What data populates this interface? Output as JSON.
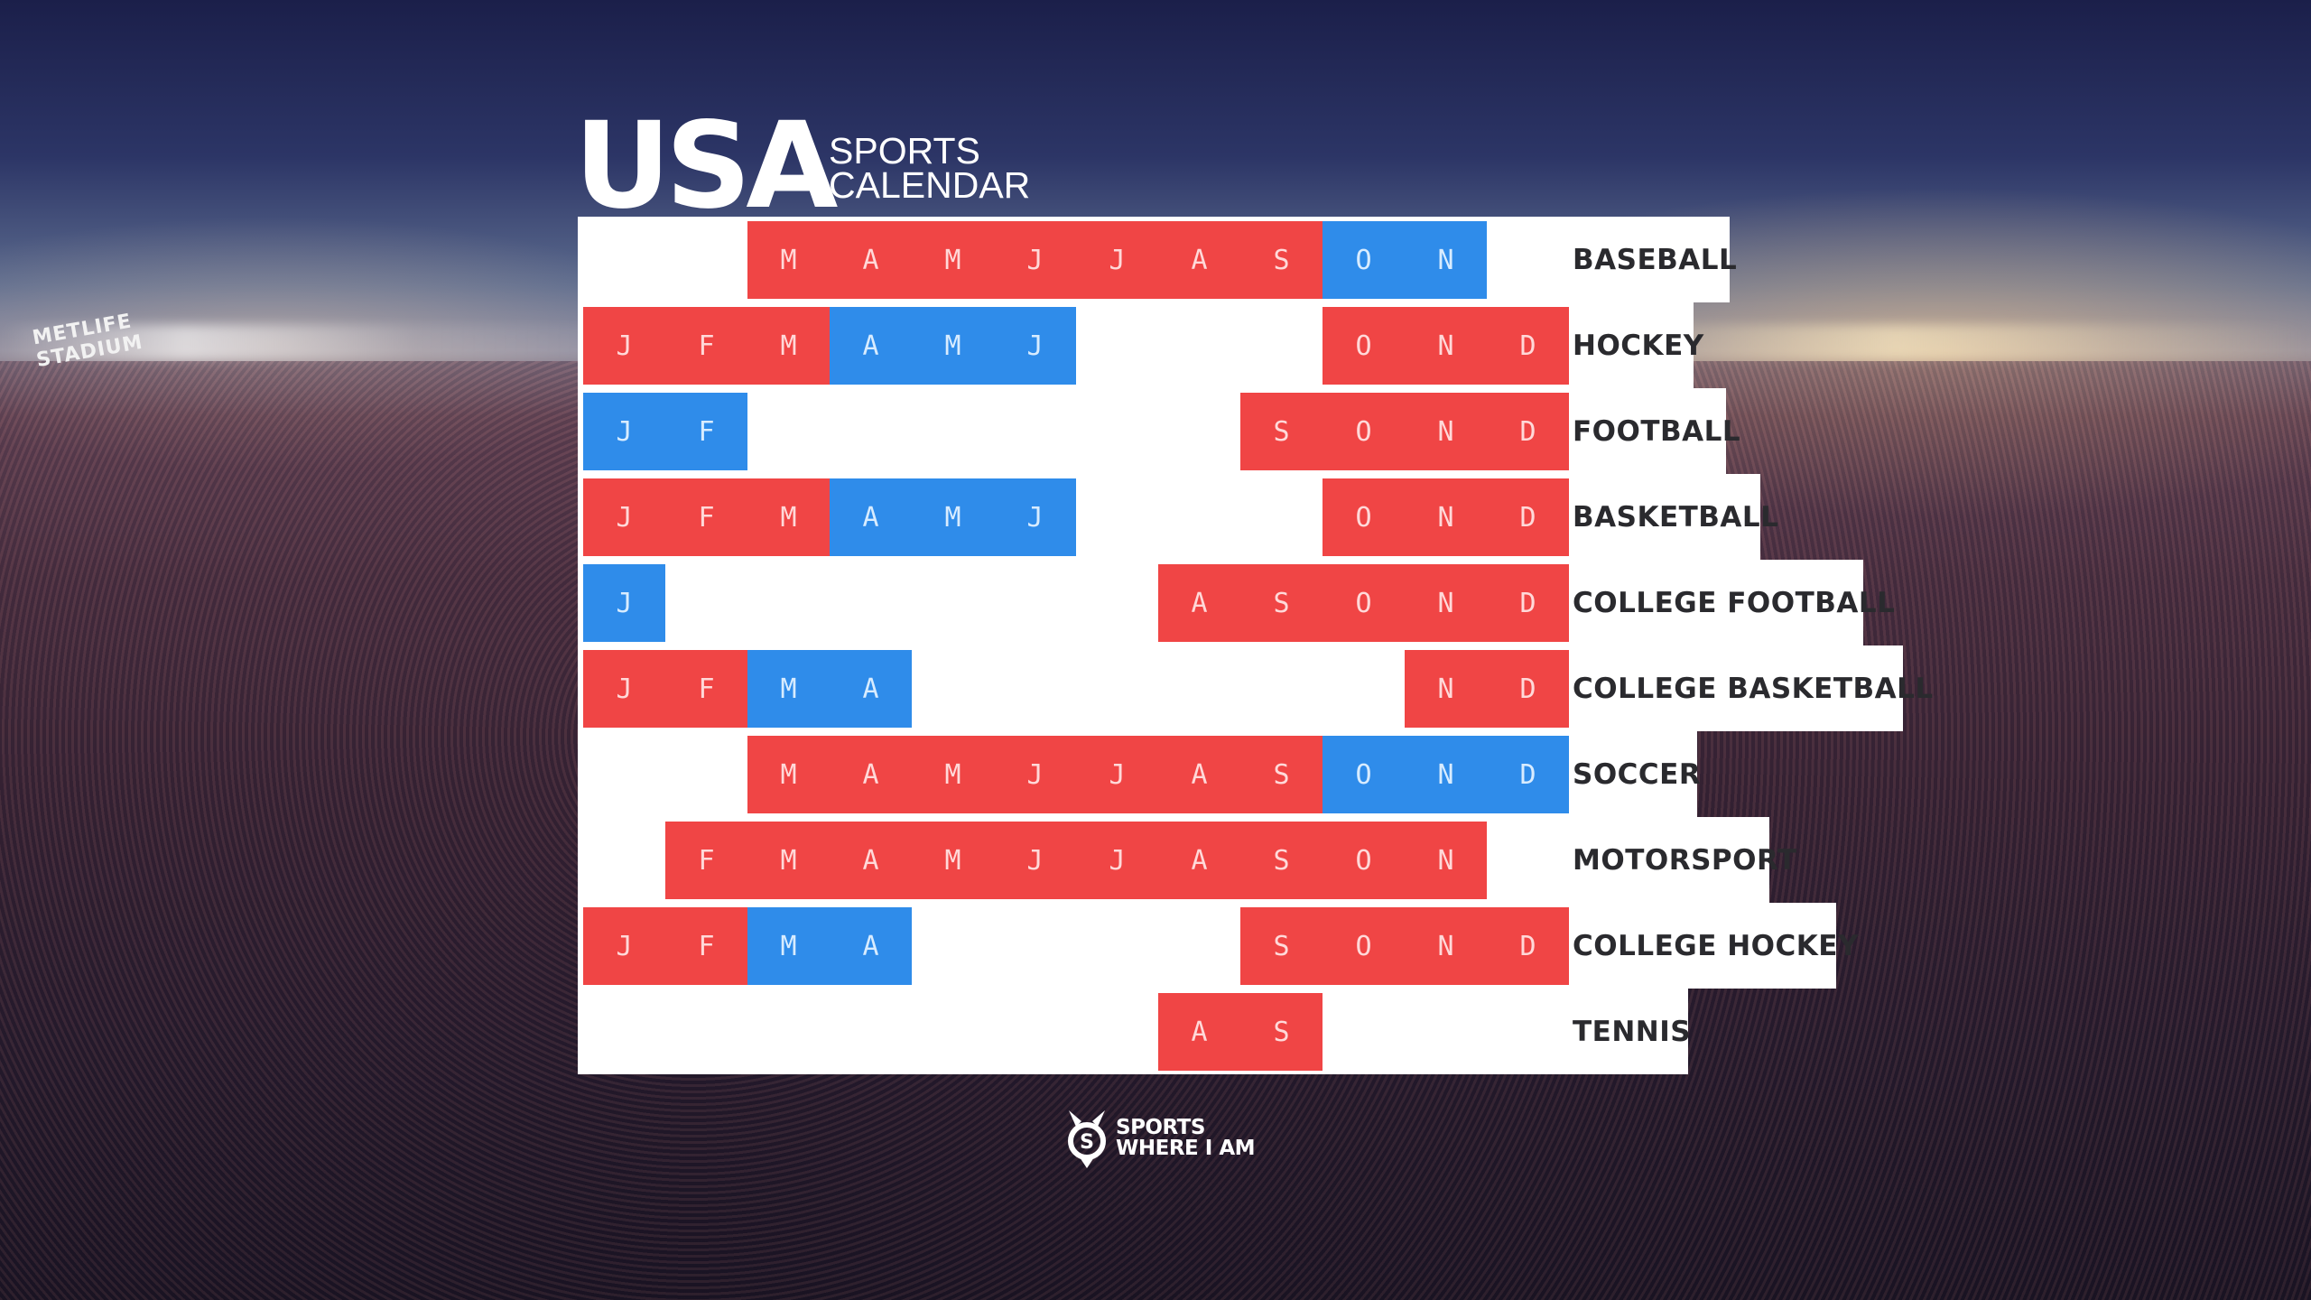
{
  "title": {
    "main": "USA",
    "line1": "SPORTS",
    "line2": "CALENDAR"
  },
  "colors": {
    "season": "#f04545",
    "playoffs": "#2f8cea",
    "panel": "#ffffff",
    "label": "#2a2a2e"
  },
  "background": {
    "stadium_sign": "METLIFE STADIUM"
  },
  "sports": [
    {
      "name": "BASEBALL",
      "months": [
        {
          "m": "M",
          "c": "red"
        },
        {
          "m": "A",
          "c": "red"
        },
        {
          "m": "M",
          "c": "red"
        },
        {
          "m": "J",
          "c": "red"
        },
        {
          "m": "J",
          "c": "red"
        },
        {
          "m": "A",
          "c": "red"
        },
        {
          "m": "S",
          "c": "red"
        },
        {
          "m": "O",
          "c": "blue"
        },
        {
          "m": "N",
          "c": "blue"
        }
      ],
      "start": 2
    },
    {
      "name": "HOCKEY",
      "segments": [
        {
          "start": 0,
          "months": [
            {
              "m": "J",
              "c": "red"
            },
            {
              "m": "F",
              "c": "red"
            },
            {
              "m": "M",
              "c": "red"
            },
            {
              "m": "A",
              "c": "blue"
            },
            {
              "m": "M",
              "c": "blue"
            },
            {
              "m": "J",
              "c": "blue"
            }
          ]
        },
        {
          "start": 9,
          "months": [
            {
              "m": "O",
              "c": "red"
            },
            {
              "m": "N",
              "c": "red"
            },
            {
              "m": "D",
              "c": "red"
            }
          ]
        }
      ]
    },
    {
      "name": "FOOTBALL",
      "segments": [
        {
          "start": 0,
          "months": [
            {
              "m": "J",
              "c": "blue"
            },
            {
              "m": "F",
              "c": "blue"
            }
          ]
        },
        {
          "start": 8,
          "months": [
            {
              "m": "S",
              "c": "red"
            },
            {
              "m": "O",
              "c": "red"
            },
            {
              "m": "N",
              "c": "red"
            },
            {
              "m": "D",
              "c": "red"
            }
          ]
        }
      ]
    },
    {
      "name": "BASKETBALL",
      "segments": [
        {
          "start": 0,
          "months": [
            {
              "m": "J",
              "c": "red"
            },
            {
              "m": "F",
              "c": "red"
            },
            {
              "m": "M",
              "c": "red"
            },
            {
              "m": "A",
              "c": "blue"
            },
            {
              "m": "M",
              "c": "blue"
            },
            {
              "m": "J",
              "c": "blue"
            }
          ]
        },
        {
          "start": 9,
          "months": [
            {
              "m": "O",
              "c": "red"
            },
            {
              "m": "N",
              "c": "red"
            },
            {
              "m": "D",
              "c": "red"
            }
          ]
        }
      ]
    },
    {
      "name": "COLLEGE FOOTBALL",
      "segments": [
        {
          "start": 0,
          "months": [
            {
              "m": "J",
              "c": "blue"
            }
          ]
        },
        {
          "start": 7,
          "months": [
            {
              "m": "A",
              "c": "red"
            },
            {
              "m": "S",
              "c": "red"
            },
            {
              "m": "O",
              "c": "red"
            },
            {
              "m": "N",
              "c": "red"
            },
            {
              "m": "D",
              "c": "red"
            }
          ]
        }
      ]
    },
    {
      "name": "COLLEGE BASKETBALL",
      "segments": [
        {
          "start": 0,
          "months": [
            {
              "m": "J",
              "c": "red"
            },
            {
              "m": "F",
              "c": "red"
            },
            {
              "m": "M",
              "c": "blue"
            },
            {
              "m": "A",
              "c": "blue"
            }
          ]
        },
        {
          "start": 10,
          "months": [
            {
              "m": "N",
              "c": "red"
            },
            {
              "m": "D",
              "c": "red"
            }
          ]
        }
      ]
    },
    {
      "name": "SOCCER",
      "segments": [
        {
          "start": 2,
          "months": [
            {
              "m": "M",
              "c": "red"
            },
            {
              "m": "A",
              "c": "red"
            },
            {
              "m": "M",
              "c": "red"
            },
            {
              "m": "J",
              "c": "red"
            },
            {
              "m": "J",
              "c": "red"
            },
            {
              "m": "A",
              "c": "red"
            },
            {
              "m": "S",
              "c": "red"
            },
            {
              "m": "O",
              "c": "blue"
            },
            {
              "m": "N",
              "c": "blue"
            },
            {
              "m": "D",
              "c": "blue"
            }
          ]
        }
      ]
    },
    {
      "name": "MOTORSPORT",
      "segments": [
        {
          "start": 1,
          "months": [
            {
              "m": "F",
              "c": "red"
            },
            {
              "m": "M",
              "c": "red"
            },
            {
              "m": "A",
              "c": "red"
            },
            {
              "m": "M",
              "c": "red"
            },
            {
              "m": "J",
              "c": "red"
            },
            {
              "m": "J",
              "c": "red"
            },
            {
              "m": "A",
              "c": "red"
            },
            {
              "m": "S",
              "c": "red"
            },
            {
              "m": "O",
              "c": "red"
            },
            {
              "m": "N",
              "c": "red"
            }
          ]
        }
      ]
    },
    {
      "name": "COLLEGE HOCKEY",
      "segments": [
        {
          "start": 0,
          "months": [
            {
              "m": "J",
              "c": "red"
            },
            {
              "m": "F",
              "c": "red"
            },
            {
              "m": "M",
              "c": "blue"
            },
            {
              "m": "A",
              "c": "blue"
            }
          ]
        },
        {
          "start": 8,
          "months": [
            {
              "m": "S",
              "c": "red"
            },
            {
              "m": "O",
              "c": "red"
            },
            {
              "m": "N",
              "c": "red"
            },
            {
              "m": "D",
              "c": "red"
            }
          ]
        }
      ]
    },
    {
      "name": "TENNIS",
      "segments": [
        {
          "start": 7,
          "months": [
            {
              "m": "A",
              "c": "red"
            },
            {
              "m": "S",
              "c": "red"
            }
          ]
        }
      ]
    }
  ],
  "logo": {
    "line1": "SPORTS",
    "line2": "WHERE I AM"
  }
}
